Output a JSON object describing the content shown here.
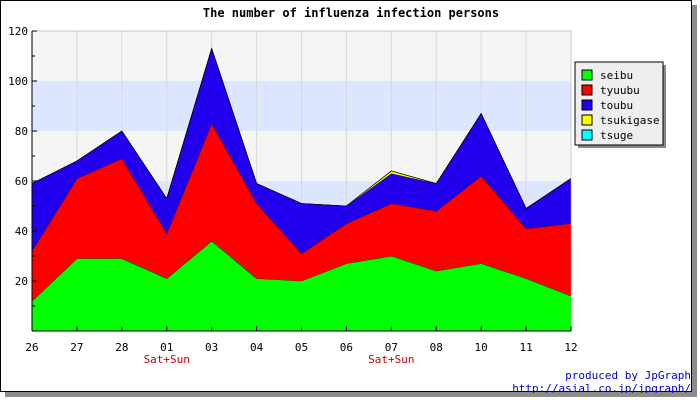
{
  "chart_data": {
    "type": "area",
    "stacked": true,
    "title": "The number of influenza infection persons",
    "xlabel": "",
    "ylabel": "",
    "categories": [
      "26",
      "27",
      "28",
      "01",
      "03",
      "04",
      "05",
      "06",
      "07",
      "08",
      "10",
      "11",
      "12"
    ],
    "category_notes": [
      "",
      "",
      "",
      "Sat+Sun",
      "",
      "",
      "",
      "",
      "Sat+Sun",
      "",
      "",
      "",
      ""
    ],
    "ylim": [
      0,
      120
    ],
    "yticks": [
      "20",
      "40",
      "60",
      "80",
      "100",
      "120"
    ],
    "grid": true,
    "legend_position": "right",
    "series": [
      {
        "name": "seibu",
        "color": "#00ff00",
        "values": [
          12,
          29,
          29,
          21,
          36,
          21,
          20,
          27,
          30,
          24,
          27,
          21,
          14
        ]
      },
      {
        "name": "tyuubu",
        "color": "#ff0000",
        "values": [
          20,
          32,
          40,
          18,
          47,
          30,
          11,
          16,
          21,
          24,
          35,
          20,
          29
        ]
      },
      {
        "name": "toubu",
        "color": "#2200ee",
        "values": [
          27,
          7,
          11,
          14,
          30,
          8,
          20,
          7,
          12,
          11,
          25,
          8,
          18
        ]
      },
      {
        "name": "tsukigase",
        "color": "#ffff00",
        "values": [
          0,
          0,
          0,
          0,
          0,
          0,
          0,
          0,
          1,
          0,
          0,
          0,
          0
        ]
      },
      {
        "name": "tsuge",
        "color": "#00ffff",
        "values": [
          0,
          0,
          0,
          0,
          0,
          0,
          0,
          0,
          0,
          0,
          0,
          0,
          0
        ]
      }
    ]
  },
  "credit": {
    "line1": "produced by JpGraph",
    "line2": "http://asial.co.jp/jpgraph/"
  },
  "colors": {
    "band_light": "#dde6ff",
    "band_white": "#f5f5f5",
    "note_text": "#cc0000",
    "credit_text": "#0000cc"
  }
}
